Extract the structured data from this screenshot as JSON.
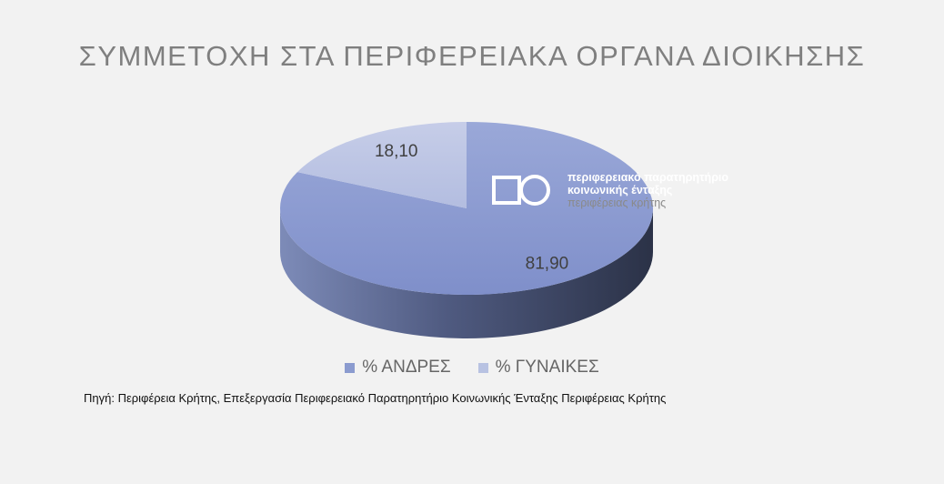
{
  "chart_data": {
    "type": "pie",
    "title": "ΣΥΜΜΕΤΟΧΗ ΣΤΑ ΠΕΡΙΦΕΡΕΙΑΚΑ ΟΡΓΑΝΑ ΔΙΟΙΚΗΣΗΣ",
    "slices": [
      {
        "label": "% ΑΝΔΡΕΣ",
        "value": 81.9,
        "value_label": "81,90",
        "color": "#8b9bcf"
      },
      {
        "label": "% ΓΥΝΑΙΚΕΣ",
        "value": 18.1,
        "value_label": "18,10",
        "color": "#b8c2e2"
      }
    ],
    "style": "3d",
    "legend_position": "bottom"
  },
  "logo": {
    "line1": "περιφερειακό παρατηρητήριο",
    "line2": "κοινωνικής ένταξης",
    "line3": "περιφέρειας κρήτης"
  },
  "source_note": "Πηγή: Περιφέρεια Κρήτης, Επεξεργασία Περιφερειακό Παρατηρητήριο Κοινωνικής Ένταξης Περιφέρειας Κρήτης"
}
